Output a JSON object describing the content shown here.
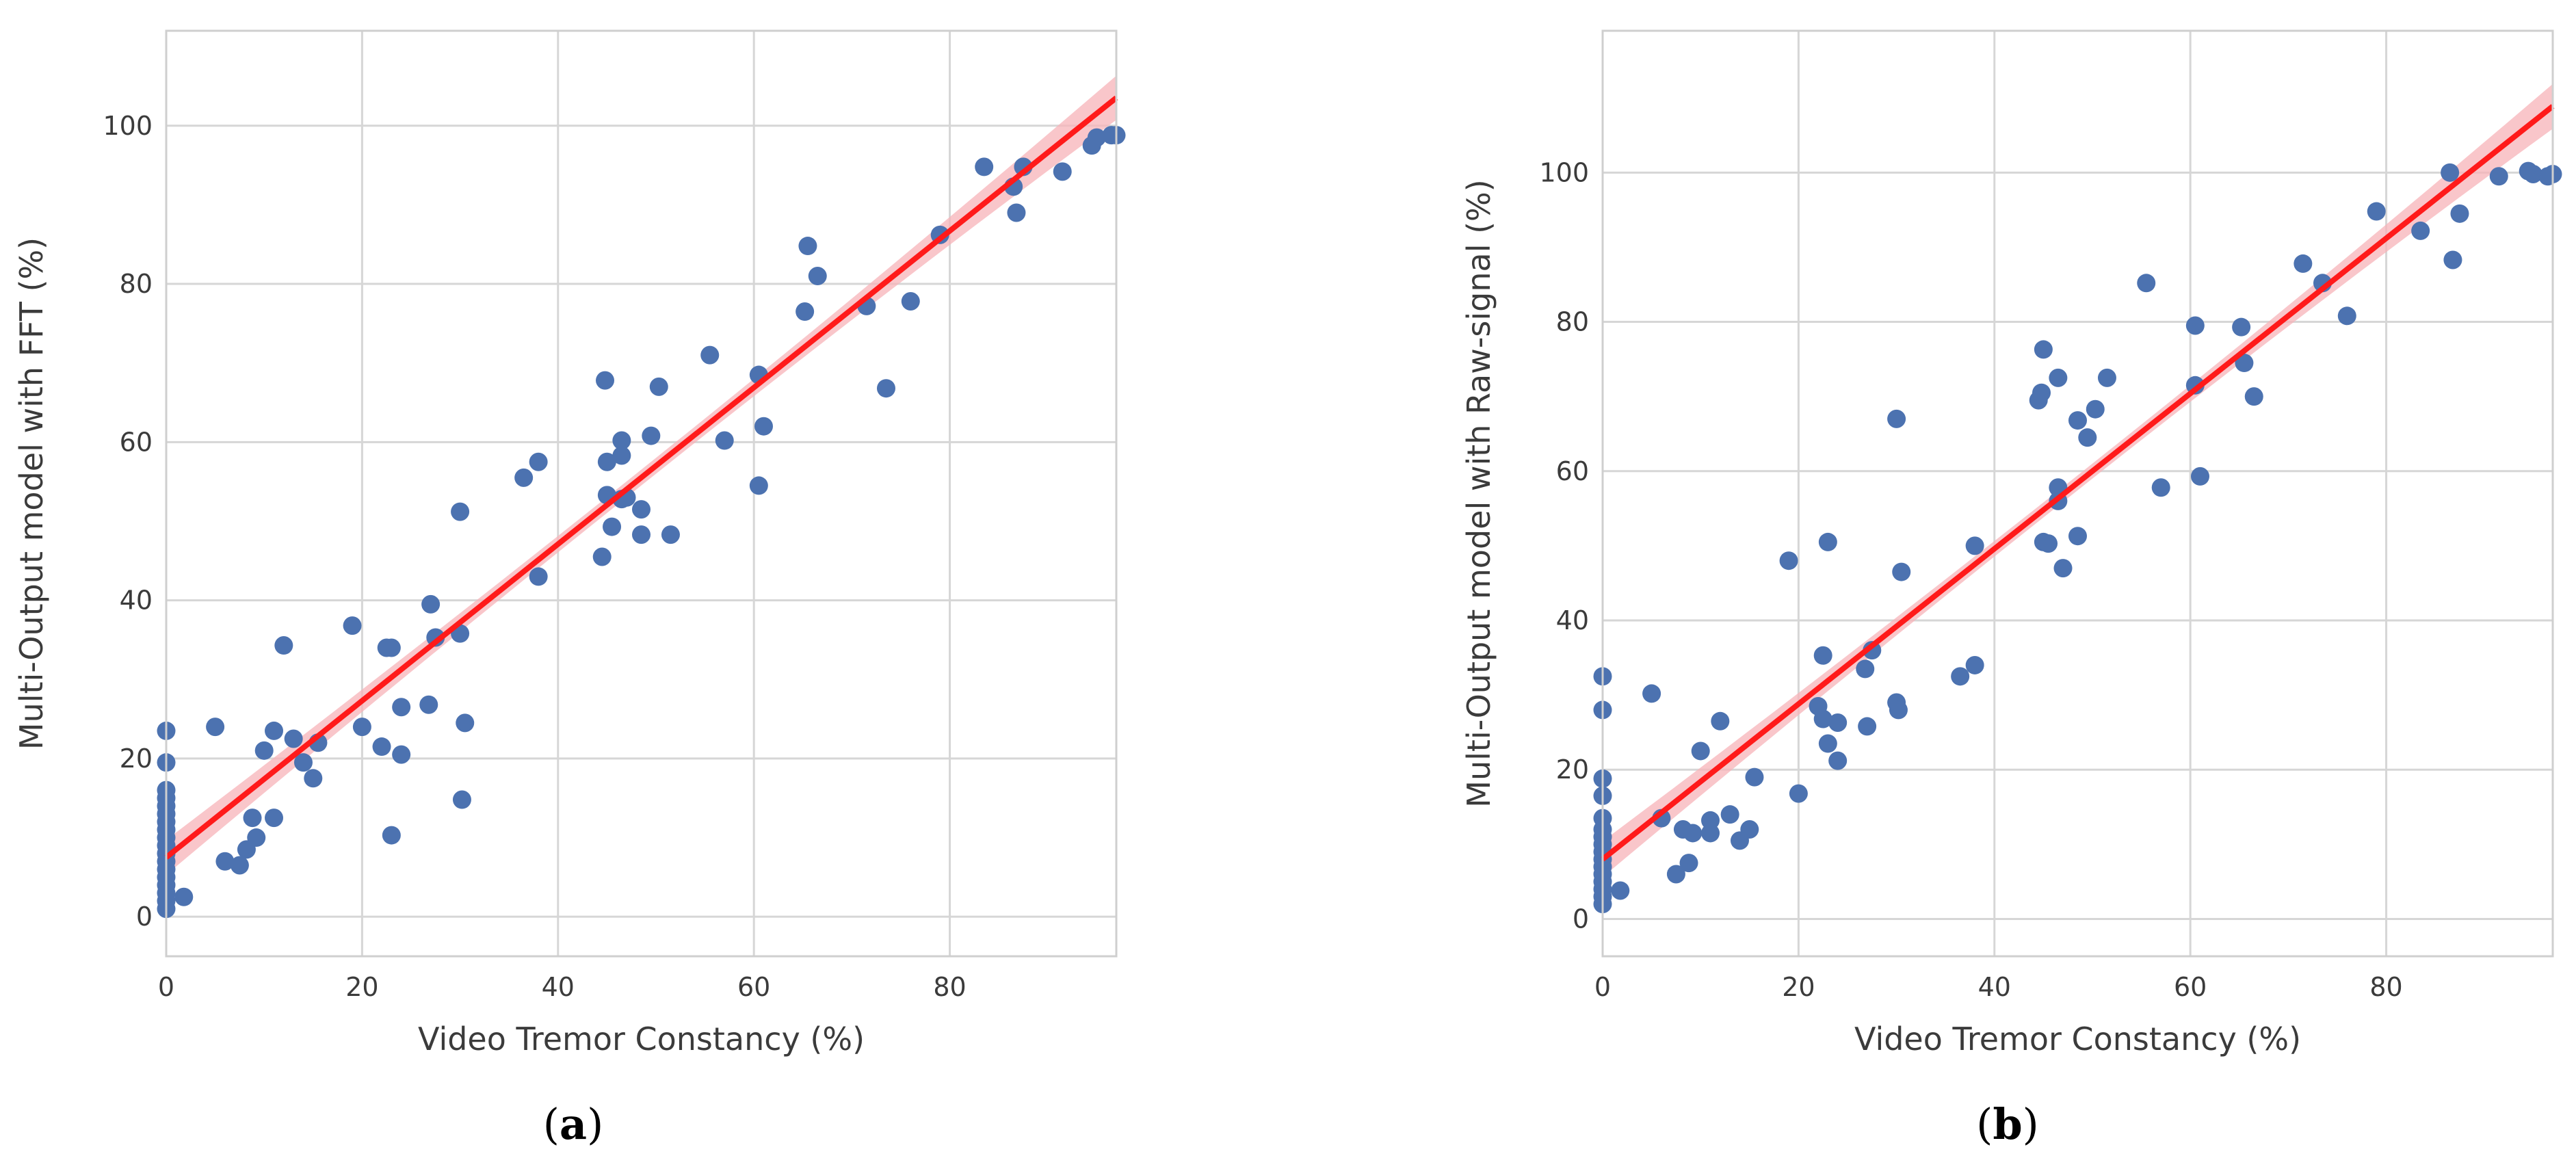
{
  "chart_data": [
    {
      "type": "scatter",
      "panel_label": "a",
      "caption_open": "(",
      "caption_close": ")",
      "title": "",
      "xlabel": "Video Tremor Constancy (%)",
      "ylabel": "Multi-Output model with FFT (%)",
      "xlim": [
        0,
        97
      ],
      "ylim": [
        -5,
        112
      ],
      "xticks": [
        0,
        20,
        40,
        60,
        80
      ],
      "yticks": [
        0,
        20,
        40,
        60,
        80,
        100
      ],
      "grid": true,
      "regression": {
        "intercept": 7.5,
        "slope": 0.99,
        "ci_start": 2.2,
        "ci_mid": 1.0,
        "ci_end": 2.8
      },
      "colors": {
        "points": "#4c72b0",
        "line": "#ff1a1a",
        "band": "#f7b3b8",
        "grid": "#d6d6d6",
        "frame": "#cfcfcf"
      },
      "x": [
        0,
        0,
        0,
        0,
        0,
        0,
        0,
        0,
        0,
        0,
        0,
        0,
        0,
        0,
        0,
        0,
        0,
        0,
        1.8,
        5,
        6,
        7.5,
        8.2,
        8.8,
        9.2,
        10,
        11,
        11,
        12,
        13,
        14,
        15,
        15.5,
        19,
        20,
        22,
        22.5,
        23,
        23,
        24,
        24,
        26.8,
        27,
        27.5,
        30,
        30,
        30.5,
        30.2,
        36.5,
        38,
        38,
        44.5,
        44.8,
        45,
        45,
        45.5,
        46.5,
        46.5,
        46.5,
        47,
        48.5,
        48.5,
        49.5,
        50.3,
        51.5,
        55.5,
        57,
        60.5,
        60.5,
        61,
        65.2,
        65.5,
        66.5,
        71.5,
        73.5,
        76,
        79,
        83.5,
        86.5,
        86.8,
        87.5,
        91.5,
        94.5,
        95,
        96.5,
        97
      ],
      "y": [
        23.5,
        19.5,
        16,
        15,
        14,
        13,
        12,
        11,
        10,
        9,
        8,
        7,
        6,
        5,
        4,
        3,
        2,
        1,
        2.5,
        24,
        7,
        6.5,
        8.5,
        12.5,
        10,
        21,
        23.5,
        12.5,
        34.3,
        22.5,
        19.5,
        17.5,
        22,
        36.8,
        24,
        21.5,
        34,
        34,
        10.3,
        20.5,
        26.5,
        26.8,
        39.5,
        35.3,
        35.8,
        51.2,
        24.5,
        14.8,
        55.5,
        57.5,
        43,
        45.5,
        67.8,
        53.3,
        57.5,
        49.3,
        52.8,
        58.3,
        60.2,
        53,
        51.5,
        48.3,
        60.8,
        67,
        48.3,
        71,
        60.2,
        68.5,
        54.5,
        62,
        76.5,
        84.8,
        81,
        77.2,
        66.8,
        77.8,
        86.2,
        94.8,
        92.3,
        89,
        94.8,
        94.2,
        97.5,
        98.5,
        98.8,
        98.8
      ]
    },
    {
      "type": "scatter",
      "panel_label": "b",
      "caption_open": "(",
      "caption_close": ")",
      "title": "",
      "xlabel": "Video Tremor Constancy (%)",
      "ylabel": "Multi-Output model with Raw-signal (%)",
      "xlim": [
        0,
        97
      ],
      "ylim": [
        -5,
        119
      ],
      "xticks": [
        0,
        20,
        40,
        60,
        80
      ],
      "yticks": [
        0,
        20,
        40,
        60,
        80,
        100
      ],
      "grid": true,
      "regression": {
        "intercept": 8.0,
        "slope": 1.04,
        "ci_start": 2.4,
        "ci_mid": 1.0,
        "ci_end": 3.0
      },
      "colors": {
        "points": "#4c72b0",
        "line": "#ff1a1a",
        "band": "#f7b3b8",
        "grid": "#d6d6d6",
        "frame": "#cfcfcf"
      },
      "x": [
        0,
        0,
        0,
        0,
        0,
        0,
        0,
        0,
        0,
        0,
        0,
        0,
        0,
        0,
        0,
        0,
        1.8,
        5,
        6,
        7.5,
        8.2,
        8.8,
        9.2,
        10,
        11,
        11,
        12,
        13,
        14,
        15,
        15.5,
        19,
        20,
        22,
        22.5,
        22.5,
        23,
        23,
        24,
        24,
        26.8,
        27,
        27.5,
        30,
        30,
        30.5,
        30.2,
        36.5,
        38,
        38,
        44.5,
        44.8,
        45,
        45,
        45.5,
        46.5,
        46.5,
        46.5,
        47,
        48.5,
        48.5,
        49.5,
        50.3,
        51.5,
        55.5,
        57,
        60.5,
        60.5,
        61,
        65.2,
        65.5,
        66.5,
        71.5,
        73.5,
        76,
        79,
        83.5,
        86.5,
        86.8,
        87.5,
        91.5,
        94.5,
        95,
        96.5,
        97
      ],
      "y": [
        32.5,
        28,
        18.8,
        16.5,
        13.5,
        12,
        11,
        10,
        9,
        8,
        7,
        6,
        5,
        4,
        3,
        2,
        3.8,
        30.2,
        13.5,
        6,
        12,
        7.5,
        11.5,
        22.5,
        13.2,
        11.5,
        26.5,
        14,
        10.5,
        12,
        19,
        48,
        16.8,
        28.5,
        26.8,
        35.3,
        23.5,
        50.5,
        21.2,
        26.3,
        33.5,
        25.8,
        36,
        67,
        29,
        46.5,
        28,
        32.5,
        50,
        34,
        69.5,
        70.5,
        76.3,
        50.5,
        50.3,
        56,
        57.8,
        72.5,
        47,
        51.3,
        66.8,
        64.5,
        68.3,
        72.5,
        85.2,
        57.8,
        71.5,
        79.5,
        59.3,
        79.3,
        74.5,
        70,
        87.8,
        85.2,
        80.8,
        94.8,
        92.2,
        100,
        88.3,
        94.5,
        99.5,
        100.2,
        99.8,
        99.5,
        99.8
      ]
    }
  ]
}
